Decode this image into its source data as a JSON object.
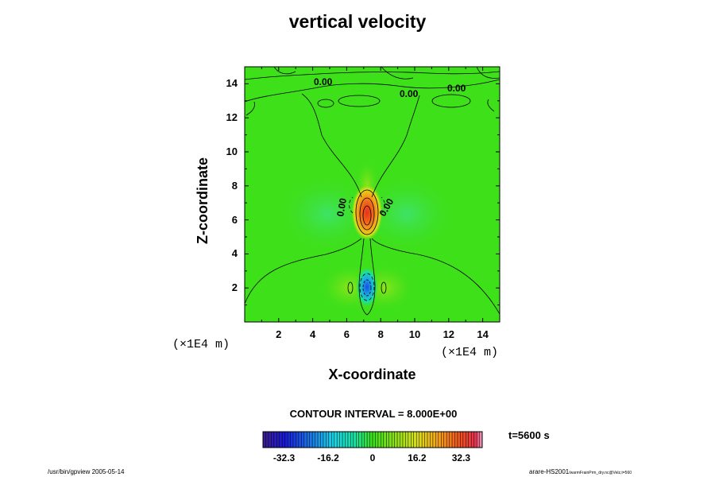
{
  "chart_data": {
    "type": "heatmap",
    "title": "vertical velocity",
    "xlabel": "X-coordinate",
    "ylabel": "Z-coordinate",
    "x_unit": "(×1E4 m)",
    "y_unit": "(×1E4 m)",
    "x_ticks": [
      2,
      4,
      6,
      8,
      10,
      12,
      14
    ],
    "y_ticks": [
      2,
      4,
      6,
      8,
      10,
      12,
      14
    ],
    "xlim": [
      0,
      15
    ],
    "ylim": [
      0,
      15
    ],
    "contour_interval": "CONTOUR INTERVAL = 8.000E+00",
    "contour_labels": [
      "0.00",
      "0.00",
      "0.00",
      "0.00",
      "0.00"
    ],
    "features": [
      {
        "kind": "updraft-max",
        "x": 7.2,
        "z": 6.3,
        "value": 40
      },
      {
        "kind": "downdraft-min",
        "x": 7.2,
        "z": 2.0,
        "value": -32
      }
    ],
    "colorbar": {
      "min": -40,
      "max": 40,
      "tick_labels": [
        "-32.3",
        "-16.2",
        "0",
        "16.2",
        "32.3"
      ],
      "tick_values": [
        -32.3,
        -16.2,
        0,
        16.2,
        32.3
      ]
    },
    "time_label": "t=5600 s"
  },
  "footer": {
    "left": "/usr/bin/gpview 2005-05-14",
    "right_main": "arare-HS2001",
    "right_sub": "/warmFrainPrm_dry.nc@Velz,t=560"
  }
}
